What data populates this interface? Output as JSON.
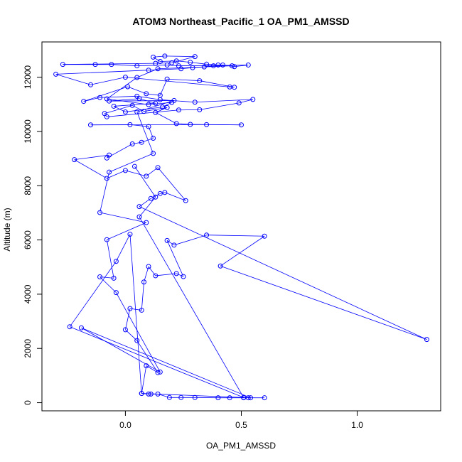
{
  "chart_data": {
    "type": "line",
    "title": "ATOM3 Northeast_Pacific_1 OA_PM1_AMSSD",
    "xlabel": "OA_PM1_AMSSD",
    "ylabel": "Altitude (m)",
    "xlim": [
      -0.36,
      1.36
    ],
    "ylim": [
      -300,
      13300
    ],
    "x_ticks": [
      0.0,
      0.5,
      1.0
    ],
    "x_tick_labels": [
      "0.0",
      "0.5",
      "1.0"
    ],
    "y_ticks": [
      0,
      2000,
      4000,
      6000,
      8000,
      10000,
      12000
    ],
    "y_tick_labels": [
      "0",
      "2000",
      "4000",
      "6000",
      "8000",
      "10000",
      "12000"
    ],
    "grid": false,
    "series_color": "#0000ff",
    "series": [
      {
        "marker": "open-circle",
        "points": [
          [
            0.6,
            180
          ],
          [
            0.53,
            180
          ],
          [
            0.51,
            180
          ],
          [
            0.45,
            180
          ],
          [
            0.4,
            180
          ],
          [
            0.3,
            190
          ],
          [
            0.24,
            190
          ],
          [
            0.19,
            190
          ],
          [
            0.14,
            320
          ],
          [
            0.11,
            320
          ],
          [
            0.1,
            320
          ],
          [
            0.07,
            340
          ],
          [
            0.09,
            1360
          ],
          [
            0.14,
            1110
          ],
          [
            0.05,
            2290
          ],
          [
            0.0,
            2690
          ],
          [
            0.02,
            3470
          ],
          [
            0.07,
            3410
          ],
          [
            0.08,
            4450
          ],
          [
            0.1,
            5020
          ],
          [
            0.13,
            4680
          ],
          [
            0.22,
            4760
          ],
          [
            0.25,
            4650
          ],
          [
            0.18,
            5980
          ],
          [
            0.21,
            5810
          ],
          [
            0.35,
            6180
          ],
          [
            0.6,
            6140
          ],
          [
            0.41,
            5040
          ],
          [
            1.3,
            2330
          ],
          [
            0.06,
            7230
          ],
          [
            0.11,
            7530
          ],
          [
            0.15,
            7710
          ],
          [
            0.17,
            7750
          ],
          [
            0.26,
            7450
          ],
          [
            0.14,
            8670
          ],
          [
            0.09,
            8350
          ],
          [
            0.0,
            8560
          ],
          [
            -0.08,
            8270
          ],
          [
            -0.22,
            8960
          ],
          [
            -0.07,
            9130
          ],
          [
            -0.08,
            9020
          ],
          [
            0.03,
            9540
          ],
          [
            0.07,
            9600
          ],
          [
            0.12,
            9750
          ],
          [
            0.1,
            10180
          ],
          [
            0.02,
            10250
          ],
          [
            -0.15,
            10240
          ],
          [
            0.35,
            10250
          ],
          [
            0.5,
            10240
          ],
          [
            0.28,
            10260
          ],
          [
            0.22,
            10290
          ],
          [
            0.13,
            10700
          ],
          [
            0.18,
            10880
          ],
          [
            0.08,
            10740
          ],
          [
            0.03,
            10960
          ],
          [
            -0.09,
            10660
          ],
          [
            -0.08,
            10540
          ],
          [
            0.23,
            10790
          ],
          [
            0.32,
            10800
          ],
          [
            0.49,
            11050
          ],
          [
            0.55,
            11180
          ],
          [
            0.3,
            11080
          ],
          [
            0.15,
            11170
          ],
          [
            0.05,
            11300
          ],
          [
            -0.11,
            11250
          ],
          [
            -0.18,
            11110
          ],
          [
            0.01,
            11650
          ],
          [
            0.09,
            11390
          ],
          [
            0.15,
            11330
          ],
          [
            0.18,
            11930
          ],
          [
            0.32,
            11870
          ],
          [
            0.47,
            11630
          ],
          [
            0.45,
            11640
          ],
          [
            0.0,
            12000
          ],
          [
            -0.15,
            11720
          ],
          [
            -0.3,
            12110
          ],
          [
            0.1,
            12260
          ],
          [
            0.24,
            12310
          ],
          [
            0.29,
            12350
          ],
          [
            0.34,
            12380
          ],
          [
            0.42,
            12450
          ],
          [
            0.47,
            12390
          ],
          [
            0.53,
            12450
          ],
          [
            0.38,
            12420
          ],
          [
            0.23,
            12420
          ],
          [
            0.18,
            12450
          ],
          [
            0.05,
            12420
          ],
          [
            -0.06,
            12470
          ],
          [
            -0.13,
            12470
          ],
          [
            -0.27,
            12470
          ],
          [
            0.13,
            12510
          ],
          [
            0.2,
            12530
          ],
          [
            0.3,
            12760
          ],
          [
            0.17,
            12780
          ],
          [
            0.12,
            12740
          ],
          [
            0.15,
            12580
          ],
          [
            0.22,
            12600
          ],
          [
            0.28,
            12550
          ],
          [
            0.35,
            12480
          ],
          [
            0.4,
            12450
          ],
          [
            0.46,
            12420
          ],
          [
            0.14,
            12310
          ],
          [
            0.05,
            11990
          ],
          [
            -0.08,
            11200
          ],
          [
            0.1,
            10990
          ],
          [
            0.2,
            11070
          ],
          [
            0.16,
            10900
          ],
          [
            0.0,
            10720
          ],
          [
            -0.05,
            10930
          ],
          [
            0.13,
            11040
          ],
          [
            0.06,
            11210
          ],
          [
            -0.07,
            11120
          ],
          [
            0.21,
            11140
          ],
          [
            0.05,
            10720
          ],
          [
            0.12,
            9190
          ],
          [
            -0.07,
            8500
          ],
          [
            -0.11,
            7010
          ],
          [
            0.09,
            6640
          ],
          [
            -0.08,
            6010
          ],
          [
            -0.05,
            4590
          ],
          [
            -0.11,
            4640
          ],
          [
            -0.04,
            4060
          ],
          [
            0.15,
            1130
          ],
          [
            -0.19,
            2760
          ],
          [
            0.54,
            180
          ],
          [
            0.07,
            340
          ],
          [
            0.02,
            6210
          ],
          [
            -0.04,
            5210
          ],
          [
            -0.24,
            2800
          ],
          [
            0.51,
            190
          ],
          [
            0.06,
            6850
          ],
          [
            0.13,
            7580
          ],
          [
            0.04,
            8710
          ]
        ]
      }
    ]
  }
}
